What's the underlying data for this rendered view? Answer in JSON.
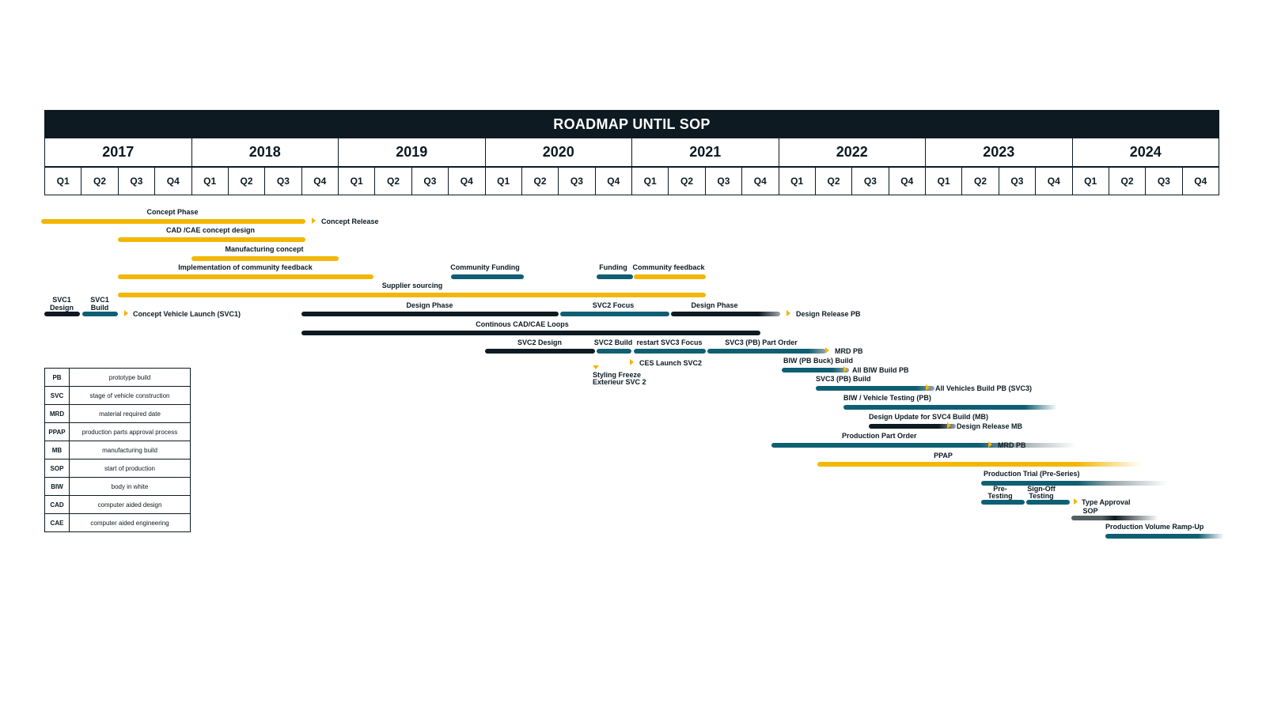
{
  "title": "ROADMAP UNTIL SOP",
  "years": [
    "2017",
    "2018",
    "2019",
    "2020",
    "2021",
    "2022",
    "2023",
    "2024"
  ],
  "quarters": [
    "Q1",
    "Q2",
    "Q3",
    "Q4"
  ],
  "colors": {
    "yellow": "#f2b705",
    "teal": "#0e5f73",
    "dark": "#0d1a21",
    "grey": "#9aa6ab"
  },
  "labels": {
    "concept_phase": "Concept Phase",
    "concept_release": "Concept Release",
    "cad_cae": "CAD /CAE concept design",
    "manufacturing_concept": "Manufacturing concept",
    "community_feedback_impl": "Implementation of community feedback",
    "community_funding": "Community Funding",
    "funding": "Funding",
    "community_feedback": "Community feedback",
    "supplier_sourcing": "Supplier sourcing",
    "svc1_design": "SVC1\nDesign",
    "svc1_build": "SVC1\nBuild",
    "concept_vehicle_launch": "Concept Vehicle Launch (SVC1)",
    "design_phase_1": "Design Phase",
    "svc2_focus": "SVC2 Focus",
    "design_phase_2": "Design Phase",
    "design_release_pb": "Design Release PB",
    "continous_loops": "Continous CAD/CAE Loops",
    "svc2_design": "SVC2 Design",
    "svc2_build": "SVC2 Build",
    "restart_svc3": "restart SVC3 Focus",
    "svc3_part_order": "SVC3 (PB) Part Order",
    "mrd_pb_1": "MRD PB",
    "ces_launch": "CES Launch SVC2",
    "styling_freeze": "Styling Freeze\nExterieur SVC 2",
    "biw_buck": "BIW (PB Buck) Build",
    "all_biw": "All BIW Build PB",
    "svc3_build": "SVC3 (PB) Build",
    "all_vehicles": "All Vehicles Build PB (SVC3)",
    "biw_vehicle_testing": "BIW / Vehicle Testing (PB)",
    "design_update_svc4": "Design Update for SVC4 Build (MB)",
    "design_release_mb": "Design Release MB",
    "production_part_order": "Production Part Order",
    "mrd_pb_2": "MRD PB",
    "ppap": "PPAP",
    "production_trial": "Production Trial (Pre-Series)",
    "pre_testing": "Pre-\nTesting",
    "signoff_testing": "Sign-Off\nTesting",
    "type_approval": "Type Approval",
    "sop": "SOP",
    "ramp_up": "Production Volume Ramp-Up"
  },
  "legend": [
    {
      "abbr": "PB",
      "desc": "prototype build"
    },
    {
      "abbr": "SVC",
      "desc": "stage of vehicle construction"
    },
    {
      "abbr": "MRD",
      "desc": "material required date"
    },
    {
      "abbr": "PPAP",
      "desc": "production parts approval process"
    },
    {
      "abbr": "MB",
      "desc": "manufacturing build"
    },
    {
      "abbr": "SOP",
      "desc": "start of production"
    },
    {
      "abbr": "BIW",
      "desc": "body in white"
    },
    {
      "abbr": "CAD",
      "desc": "computer aided design"
    },
    {
      "abbr": "CAE",
      "desc": "computer aided engineering"
    }
  ]
}
